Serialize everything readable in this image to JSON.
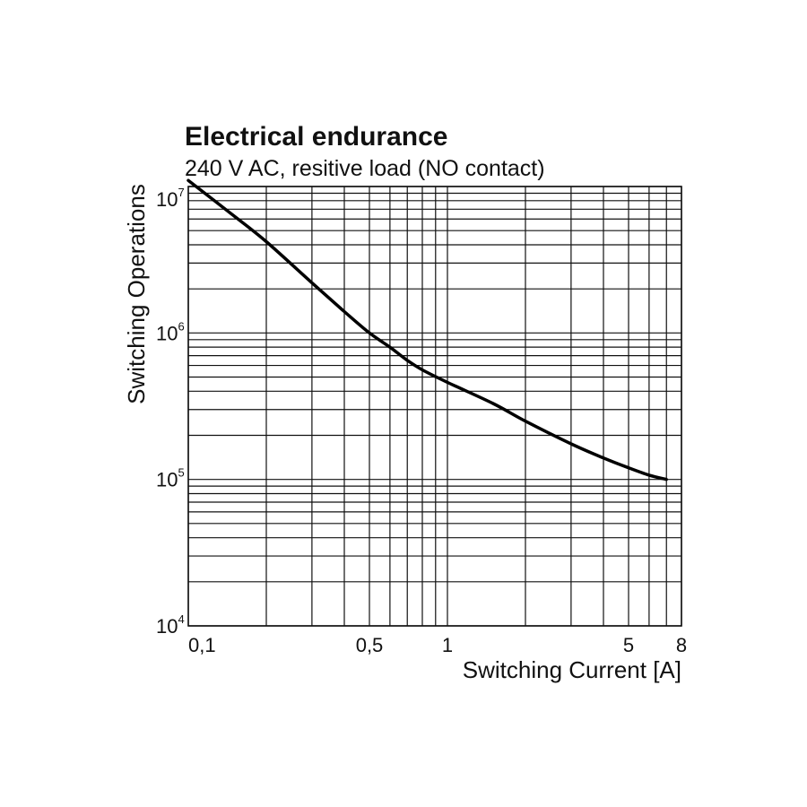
{
  "chart_data": {
    "type": "line",
    "title": "Electrical endurance",
    "subtitle": "240 V AC, resitive load (NO contact)",
    "xlabel": "Switching Current [A]",
    "ylabel": "Switching Operations",
    "x_scale": "log",
    "y_scale": "log",
    "xlim": [
      0.1,
      8
    ],
    "ylim": [
      10000,
      10000000
    ],
    "grid": true,
    "x_ticks": [
      {
        "value": 0.1,
        "label": "0,1"
      },
      {
        "value": 0.5,
        "label": "0,5"
      },
      {
        "value": 1,
        "label": "1"
      },
      {
        "value": 5,
        "label": "5"
      },
      {
        "value": 8,
        "label": "8"
      }
    ],
    "y_ticks": [
      {
        "value": 10000,
        "base": "10",
        "exp": "4"
      },
      {
        "value": 100000,
        "base": "10",
        "exp": "5"
      },
      {
        "value": 1000000,
        "base": "10",
        "exp": "6"
      },
      {
        "value": 10000000,
        "base": "10",
        "exp": "7"
      }
    ],
    "series": [
      {
        "x": [
          0.1,
          0.15,
          0.2,
          0.3,
          0.4,
          0.5,
          0.6,
          0.7,
          0.8,
          1,
          1.5,
          2,
          3,
          4,
          5,
          6,
          7
        ],
        "y": [
          11000000,
          6300000,
          4200000,
          2200000,
          1400000,
          1000000,
          800000,
          650000,
          560000,
          460000,
          330000,
          250000,
          175000,
          140000,
          120000,
          107000,
          100000
        ]
      }
    ]
  }
}
